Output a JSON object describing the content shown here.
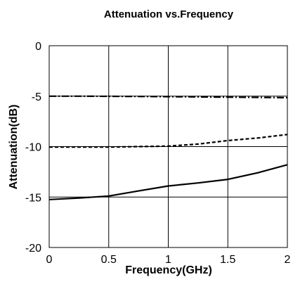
{
  "chart_data": {
    "type": "line",
    "title": "Attenuation vs.Frequency",
    "xlabel": "Frequency(GHz)",
    "ylabel": "Attenuation(dB)",
    "xlim": [
      0,
      2
    ],
    "ylim": [
      -20,
      0
    ],
    "x_ticks": [
      "0",
      "0.5",
      "1",
      "1.5",
      "2"
    ],
    "y_ticks": [
      "0",
      "-5",
      "-10",
      "-15",
      "-20"
    ],
    "grid": true,
    "series": [
      {
        "style": "dash-dot",
        "color": "#000000",
        "x": [
          0,
          0.25,
          0.5,
          0.75,
          1,
          1.25,
          1.5,
          1.75,
          2
        ],
        "y": [
          -5.0,
          -5.0,
          -5.02,
          -5.03,
          -5.05,
          -5.07,
          -5.1,
          -5.12,
          -5.15
        ]
      },
      {
        "style": "dashed",
        "color": "#000000",
        "x": [
          0,
          0.25,
          0.5,
          0.75,
          1,
          1.25,
          1.5,
          1.75,
          2
        ],
        "y": [
          -10.05,
          -10.05,
          -10.05,
          -10.0,
          -9.95,
          -9.75,
          -9.4,
          -9.15,
          -8.8
        ]
      },
      {
        "style": "solid",
        "color": "#000000",
        "x": [
          0,
          0.25,
          0.5,
          0.75,
          1,
          1.25,
          1.5,
          1.75,
          2
        ],
        "y": [
          -15.25,
          -15.1,
          -14.9,
          -14.4,
          -13.9,
          -13.6,
          -13.25,
          -12.6,
          -11.8
        ]
      }
    ]
  }
}
